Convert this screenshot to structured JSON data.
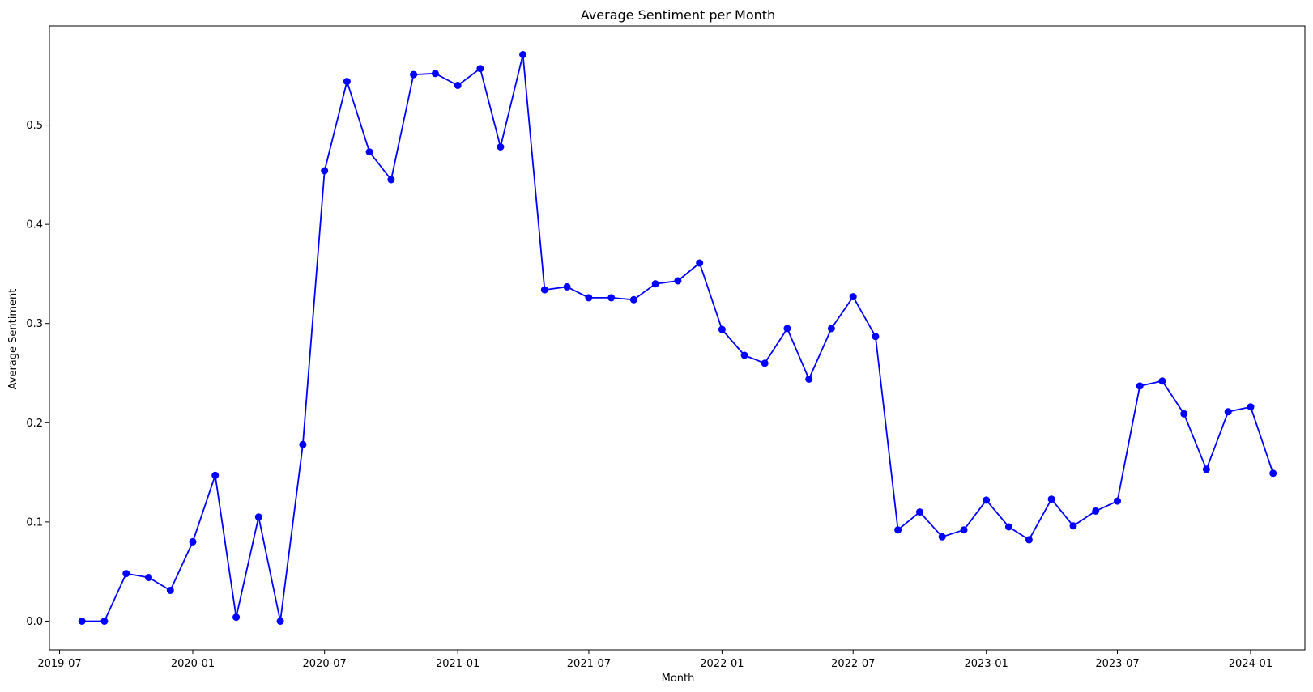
{
  "chart_data": {
    "type": "line",
    "title": "Average Sentiment per Month",
    "xlabel": "Month",
    "ylabel": "Average Sentiment",
    "x_ticks": [
      "2019-07",
      "2020-01",
      "2020-07",
      "2021-01",
      "2021-07",
      "2022-01",
      "2022-07",
      "2023-01",
      "2023-07",
      "2024-01"
    ],
    "y_ticks": [
      "0.0",
      "0.1",
      "0.2",
      "0.3",
      "0.4",
      "0.5"
    ],
    "xlim": [
      "2019-06-17",
      "2024-03-16"
    ],
    "ylim": [
      -0.029,
      0.6
    ],
    "grid": false,
    "legend": "none",
    "series": [
      {
        "color": "#0000ff",
        "marker": "circle",
        "x": [
          "2019-08",
          "2019-09",
          "2019-10",
          "2019-11",
          "2019-12",
          "2020-01",
          "2020-02",
          "2020-03",
          "2020-04",
          "2020-05",
          "2020-06",
          "2020-07",
          "2020-08",
          "2020-09",
          "2020-10",
          "2020-11",
          "2020-12",
          "2021-01",
          "2021-02",
          "2021-03",
          "2021-04",
          "2021-05",
          "2021-06",
          "2021-07",
          "2021-08",
          "2021-09",
          "2021-10",
          "2021-11",
          "2021-12",
          "2022-01",
          "2022-02",
          "2022-03",
          "2022-04",
          "2022-05",
          "2022-06",
          "2022-07",
          "2022-08",
          "2022-09",
          "2022-10",
          "2022-11",
          "2022-12",
          "2023-01",
          "2023-02",
          "2023-03",
          "2023-04",
          "2023-05",
          "2023-06",
          "2023-07",
          "2023-08",
          "2023-09",
          "2023-10",
          "2023-11",
          "2023-12",
          "2024-01",
          "2024-02"
        ],
        "values": [
          0.0,
          0.0,
          0.048,
          0.044,
          0.031,
          0.08,
          0.147,
          0.004,
          0.105,
          0.0,
          0.178,
          0.454,
          0.544,
          0.473,
          0.445,
          0.551,
          0.552,
          0.54,
          0.557,
          0.478,
          0.571,
          0.334,
          0.337,
          0.326,
          0.326,
          0.324,
          0.34,
          0.343,
          0.361,
          0.294,
          0.268,
          0.26,
          0.295,
          0.244,
          0.295,
          0.327,
          0.287,
          0.092,
          0.11,
          0.085,
          0.092,
          0.122,
          0.095,
          0.082,
          0.123,
          0.096,
          0.111,
          0.121,
          0.237,
          0.242,
          0.209,
          0.153,
          0.211,
          0.216,
          0.149
        ]
      }
    ]
  }
}
